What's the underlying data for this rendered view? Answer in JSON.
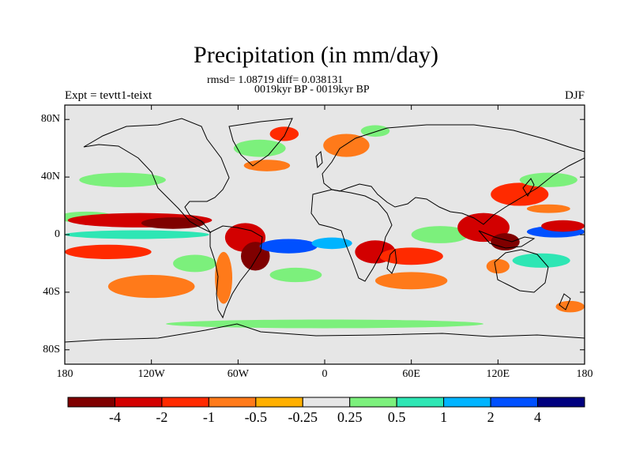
{
  "title": "Precipitation (in mm/day)",
  "stats": "rmsd= 1.08719 diff= 0.038131",
  "period": "0019kyr BP - 0019kyr BP",
  "experiment": "Expt = tevtt1-teixt",
  "season": "DJF",
  "map": {
    "lon_range": [
      -180,
      180
    ],
    "lat_range": [
      -90,
      90
    ],
    "lat_ticks": [
      "80N",
      "40N",
      "0",
      "40S",
      "80S"
    ],
    "lon_ticks": [
      "180",
      "120W",
      "60W",
      "0",
      "60E",
      "120E",
      "180"
    ],
    "background_color": "#e6e6e6"
  },
  "colorbar": {
    "colors": [
      "#7f0000",
      "#d20000",
      "#ff2a00",
      "#ff7a1a",
      "#ffb000",
      "#e6e6e6",
      "#7cf07c",
      "#2ee6b4",
      "#00b4ff",
      "#0050ff",
      "#00007f"
    ],
    "labels": [
      "-4",
      "-2",
      "-1",
      "-0.5",
      "-0.25",
      "0.25",
      "0.5",
      "1",
      "2",
      "4"
    ]
  },
  "chart_data": {
    "type": "heatmap",
    "title": "Precipitation (in mm/day)",
    "xlim": [
      -180,
      180
    ],
    "ylim": [
      -90,
      90
    ],
    "anomaly_regions": [
      {
        "lon": -140,
        "lat": 38,
        "rx": 30,
        "ry": 5,
        "value": 0.5
      },
      {
        "lon": -165,
        "lat": 12,
        "rx": 20,
        "ry": 4,
        "value": 0.5
      },
      {
        "lon": -128,
        "lat": 10,
        "rx": 50,
        "ry": 5,
        "value": -2
      },
      {
        "lon": -105,
        "lat": 8,
        "rx": 22,
        "ry": 4,
        "value": -4
      },
      {
        "lon": -130,
        "lat": 0,
        "rx": 50,
        "ry": 3,
        "value": 1
      },
      {
        "lon": -150,
        "lat": -12,
        "rx": 30,
        "ry": 5,
        "value": -1
      },
      {
        "lon": -120,
        "lat": -36,
        "rx": 30,
        "ry": 8,
        "value": -0.5
      },
      {
        "lon": -90,
        "lat": -20,
        "rx": 15,
        "ry": 6,
        "value": 0.5
      },
      {
        "lon": -55,
        "lat": -2,
        "rx": 14,
        "ry": 10,
        "value": -2
      },
      {
        "lon": -48,
        "lat": -15,
        "rx": 10,
        "ry": 10,
        "value": -4
      },
      {
        "lon": -70,
        "lat": -30,
        "rx": 6,
        "ry": 18,
        "value": -0.5
      },
      {
        "lon": -25,
        "lat": -8,
        "rx": 20,
        "ry": 5,
        "value": 4
      },
      {
        "lon": 5,
        "lat": -6,
        "rx": 14,
        "ry": 4,
        "value": 2
      },
      {
        "lon": -20,
        "lat": -28,
        "rx": 18,
        "ry": 5,
        "value": 0.5
      },
      {
        "lon": -45,
        "lat": 60,
        "rx": 18,
        "ry": 6,
        "value": 0.5
      },
      {
        "lon": -28,
        "lat": 70,
        "rx": 10,
        "ry": 5,
        "value": -1
      },
      {
        "lon": -40,
        "lat": 48,
        "rx": 16,
        "ry": 4,
        "value": -0.5
      },
      {
        "lon": 15,
        "lat": 62,
        "rx": 16,
        "ry": 8,
        "value": -0.5
      },
      {
        "lon": 35,
        "lat": 72,
        "rx": 10,
        "ry": 4,
        "value": 0.5
      },
      {
        "lon": 35,
        "lat": -12,
        "rx": 14,
        "ry": 8,
        "value": -2
      },
      {
        "lon": 60,
        "lat": -15,
        "rx": 22,
        "ry": 6,
        "value": -1
      },
      {
        "lon": 60,
        "lat": -32,
        "rx": 25,
        "ry": 6,
        "value": -0.5
      },
      {
        "lon": 80,
        "lat": 0,
        "rx": 20,
        "ry": 6,
        "value": 0.5
      },
      {
        "lon": 110,
        "lat": 5,
        "rx": 18,
        "ry": 10,
        "value": -2
      },
      {
        "lon": 125,
        "lat": -5,
        "rx": 10,
        "ry": 6,
        "value": -4
      },
      {
        "lon": 135,
        "lat": 28,
        "rx": 20,
        "ry": 8,
        "value": -1
      },
      {
        "lon": 155,
        "lat": 38,
        "rx": 20,
        "ry": 5,
        "value": 0.5
      },
      {
        "lon": 155,
        "lat": 18,
        "rx": 15,
        "ry": 3,
        "value": -0.5
      },
      {
        "lon": 160,
        "lat": 2,
        "rx": 20,
        "ry": 4,
        "value": 4
      },
      {
        "lon": 165,
        "lat": 6,
        "rx": 15,
        "ry": 4,
        "value": -2
      },
      {
        "lon": 150,
        "lat": -18,
        "rx": 20,
        "ry": 5,
        "value": 1
      },
      {
        "lon": 120,
        "lat": -22,
        "rx": 8,
        "ry": 5,
        "value": -0.5
      },
      {
        "lon": 0,
        "lat": -62,
        "rx": 110,
        "ry": 3,
        "value": 0.5
      },
      {
        "lon": 170,
        "lat": -50,
        "rx": 10,
        "ry": 4,
        "value": -0.5
      }
    ]
  }
}
